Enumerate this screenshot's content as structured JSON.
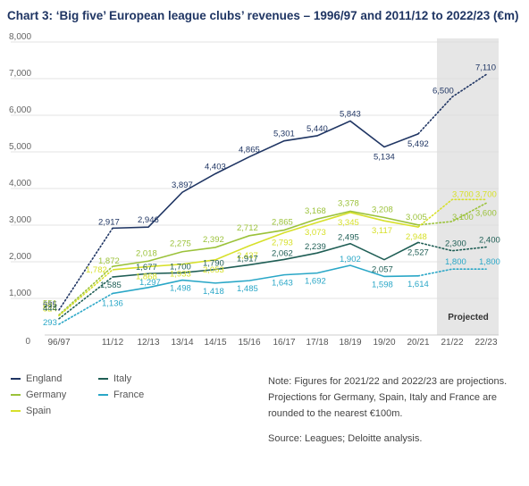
{
  "title": "Chart 3: ‘Big five’ European league clubs’ revenues – 1996/97 and 2011/12 to 2022/23 (€m)",
  "colors": {
    "England": "#1f3563",
    "Germany": "#9bc23a",
    "Spain": "#d7e02a",
    "Italy": "#1f5e55",
    "France": "#2aa7c7",
    "projected_band": "#e6e6e6",
    "grid": "#dadada"
  },
  "chart_data": {
    "type": "line",
    "title": "Chart 3: ‘Big five’ European league clubs’ revenues – 1996/97 and 2011/12 to 2022/23 (€m)",
    "categories": [
      "96/97",
      "11/12",
      "12/13",
      "13/14",
      "14/15",
      "15/16",
      "16/17",
      "17/18",
      "18/19",
      "19/20",
      "20/21",
      "21/22",
      "22/23"
    ],
    "y_ticks": [
      "0",
      "1,000",
      "2,000",
      "3,000",
      "4,000",
      "5,000",
      "6,000",
      "7,000",
      "8,000"
    ],
    "ylim": [
      0,
      8000
    ],
    "grid": true,
    "projected_label": "Projected",
    "projected_from_index": 11,
    "series": [
      {
        "name": "England",
        "values": [
          685,
          2917,
          2946,
          3897,
          4403,
          4865,
          5301,
          5440,
          5843,
          5134,
          5492,
          6500,
          7110
        ],
        "labels": [
          "685",
          "2,917",
          "2,946",
          "3,897",
          "4,403",
          "4,865",
          "5,301",
          "5,440",
          "5,843",
          "5,134",
          "5,492",
          "6,500",
          "7,110"
        ]
      },
      {
        "name": "Germany",
        "values": [
          551,
          1872,
          2018,
          2275,
          2392,
          2712,
          2865,
          3168,
          3378,
          3208,
          3005,
          3100,
          3600
        ],
        "labels": [
          "551",
          "1,872",
          "2,018",
          "2,275",
          "2,392",
          "2,712",
          "2,865",
          "3,168",
          "3,378",
          "3,208",
          "3,005",
          "3,100",
          "3,600"
        ]
      },
      {
        "name": "Spain",
        "values": [
          524,
          1782,
          1868,
          1933,
          2053,
          2437,
          2793,
          3073,
          3345,
          3117,
          2948,
          3700,
          3700
        ],
        "labels": [
          "524",
          "1,782",
          "1,868",
          "1,933",
          "2,053",
          "2,437",
          "2,793",
          "3,073",
          "3,345",
          "3,117",
          "2,948",
          "3,700",
          "3,700"
        ]
      },
      {
        "name": "Italy",
        "values": [
          444,
          1585,
          1677,
          1700,
          1790,
          1917,
          2062,
          2239,
          2495,
          2057,
          2527,
          2300,
          2400
        ],
        "labels": [
          "444",
          "1,585",
          "1,677",
          "1,700",
          "1,790",
          "1,917",
          "2,062",
          "2,239",
          "2,495",
          "2,057",
          "2,527",
          "2,300",
          "2,400"
        ]
      },
      {
        "name": "France",
        "values": [
          293,
          1136,
          1297,
          1498,
          1418,
          1485,
          1643,
          1692,
          1902,
          1598,
          1614,
          1800,
          1800
        ],
        "labels": [
          "293",
          "1,136",
          "1,297",
          "1,498",
          "1,418",
          "1,485",
          "1,643",
          "1,692",
          "1,902",
          "1,598",
          "1,614",
          "1,800",
          "1,800"
        ]
      }
    ]
  },
  "legend": [
    {
      "name": "England",
      "color": "#1f3563"
    },
    {
      "name": "Italy",
      "color": "#1f5e55"
    },
    {
      "name": "Germany",
      "color": "#9bc23a"
    },
    {
      "name": "France",
      "color": "#2aa7c7"
    },
    {
      "name": "Spain",
      "color": "#d7e02a"
    }
  ],
  "notes": {
    "note": "Note: Figures for 2021/22 and 2022/23 are projections. Projections for Germany, Spain, Italy and France are rounded to the nearest €100m.",
    "source": "Source: Leagues; Deloitte analysis."
  }
}
